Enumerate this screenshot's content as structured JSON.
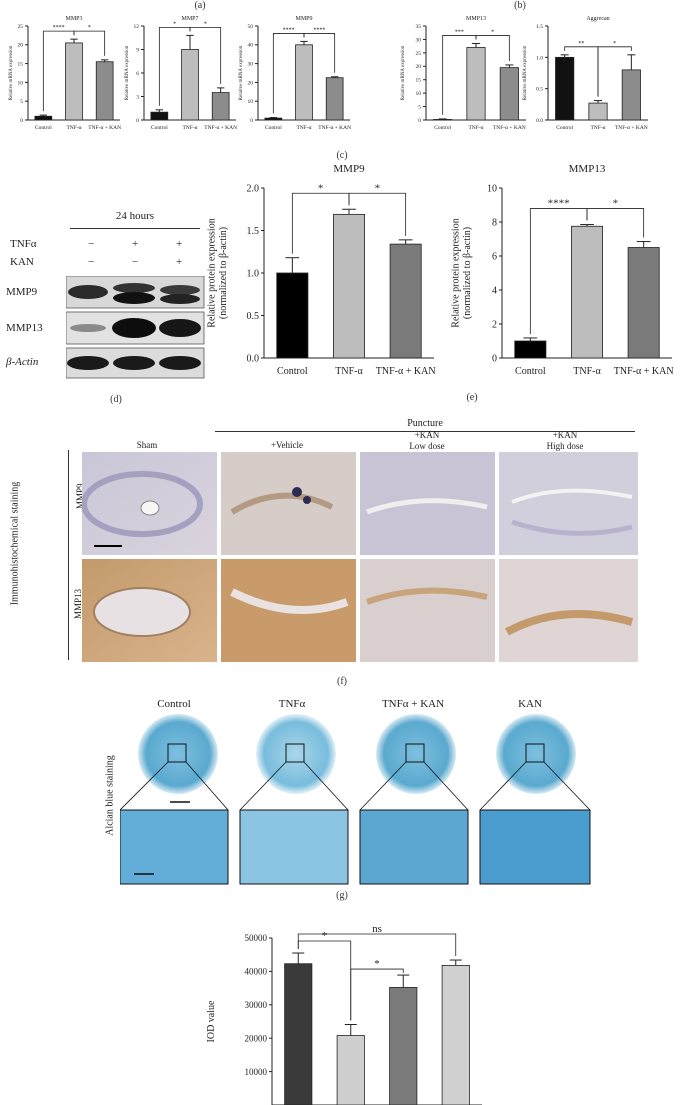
{
  "labels": {
    "a": "(a)",
    "b": "(b)",
    "c": "(c)",
    "d": "(d)",
    "e": "(e)",
    "f": "(f)",
    "g": "(g)"
  },
  "western": {
    "timepoint": "24 hours",
    "rows": [
      {
        "name": "TNFα",
        "signs": [
          "−",
          "+",
          "+"
        ]
      },
      {
        "name": "KAN",
        "signs": [
          "−",
          "−",
          "+"
        ]
      }
    ],
    "bands": [
      "MMP9",
      "MMP13",
      "β-Actin"
    ]
  },
  "ihc": {
    "puncture": "Puncture",
    "columns": [
      "Sham",
      "+Vehicle",
      "+KAN\nLow dose",
      "+KAN\nHigh dose"
    ],
    "side_label": "Immunohistochemical staining",
    "rows": [
      "MMP9",
      "MMP13"
    ]
  },
  "alcian": {
    "columns": [
      "Control",
      "TNFα",
      "TNFα + KAN",
      "KAN"
    ],
    "side_label": "Alcian blue staining",
    "colors": {
      "disc": "#5aa9cf",
      "tile": "#4f9fd0"
    }
  },
  "chart_data": [
    {
      "type": "bar",
      "title": "MMP3",
      "ylabel": "Relative mRNA expression",
      "categories": [
        "Control",
        "TNF-α",
        "TNF-α + KAN"
      ],
      "values": [
        1.0,
        20.5,
        15.5
      ],
      "errors": [
        0.3,
        1.0,
        0.5
      ],
      "ylim": [
        0,
        25
      ],
      "yticks": [
        "0",
        "5",
        "10",
        "15",
        "20",
        "25"
      ],
      "sig": [
        {
          "from": 0,
          "to": 1,
          "label": "****"
        },
        {
          "from": 1,
          "to": 2,
          "label": "*"
        }
      ],
      "colors": [
        "#111111",
        "#bdbdbd",
        "#8c8c8c"
      ]
    },
    {
      "type": "bar",
      "title": "MMP7",
      "ylabel": "Relative mRNA expression",
      "categories": [
        "Control",
        "TNF-α",
        "TNF-α + KAN"
      ],
      "values": [
        1.0,
        9.0,
        3.5
      ],
      "errors": [
        0.3,
        1.8,
        0.6
      ],
      "ylim": [
        0,
        12
      ],
      "yticks": [
        "0",
        "3",
        "6",
        "9",
        "12"
      ],
      "sig": [
        {
          "from": 0,
          "to": 1,
          "label": "*"
        },
        {
          "from": 1,
          "to": 2,
          "label": "*"
        }
      ],
      "colors": [
        "#111111",
        "#bdbdbd",
        "#8c8c8c"
      ]
    },
    {
      "type": "bar",
      "title": "MMP9",
      "ylabel": "Relative mRNA expression",
      "categories": [
        "Control",
        "TNF-α",
        "TNF-α + KAN"
      ],
      "values": [
        1.0,
        40.0,
        22.5
      ],
      "errors": [
        0.3,
        1.8,
        0.5
      ],
      "ylim": [
        0,
        50
      ],
      "yticks": [
        "0",
        "10",
        "20",
        "30",
        "40",
        "50"
      ],
      "sig": [
        {
          "from": 0,
          "to": 1,
          "label": "****"
        },
        {
          "from": 1,
          "to": 2,
          "label": "****"
        }
      ],
      "colors": [
        "#111111",
        "#bdbdbd",
        "#8c8c8c"
      ]
    },
    {
      "type": "bar",
      "title": "MMP13",
      "ylabel": "Relative mRNA expression",
      "categories": [
        "Control",
        "TNF-α",
        "TNF-α + KAN"
      ],
      "values": [
        0.2,
        27.0,
        19.5
      ],
      "errors": [
        0.2,
        1.5,
        1.0
      ],
      "ylim": [
        0,
        35
      ],
      "yticks": [
        "0",
        "5",
        "10",
        "15",
        "20",
        "25",
        "30",
        "35"
      ],
      "sig": [
        {
          "from": 0,
          "to": 1,
          "label": "***"
        },
        {
          "from": 1,
          "to": 2,
          "label": "*"
        }
      ],
      "colors": [
        "#111111",
        "#bdbdbd",
        "#8c8c8c"
      ]
    },
    {
      "type": "bar",
      "title": "Aggrecan",
      "ylabel": "Relative mRNA expression",
      "categories": [
        "Control",
        "TNF-α",
        "TNF-α + KAN"
      ],
      "values": [
        1.0,
        0.27,
        0.8
      ],
      "errors": [
        0.04,
        0.04,
        0.24
      ],
      "ylim": [
        0,
        1.5
      ],
      "yticks": [
        "0.0",
        "0.5",
        "1.0",
        "1.5"
      ],
      "sig": [
        {
          "from": 0,
          "to": 1,
          "label": "**"
        },
        {
          "from": 1,
          "to": 2,
          "label": "*"
        }
      ],
      "colors": [
        "#111111",
        "#bdbdbd",
        "#8c8c8c"
      ]
    },
    {
      "type": "bar",
      "title": "MMP9",
      "ylabel": "Relative protein expression\n(normalized to β-actin)",
      "categories": [
        "Control",
        "TNF-α",
        "TNF-α + KAN"
      ],
      "values": [
        1.0,
        1.69,
        1.34
      ],
      "errors": [
        0.18,
        0.06,
        0.05
      ],
      "ylim": [
        0,
        2.0
      ],
      "yticks": [
        "0.0",
        "0.5",
        "1.0",
        "1.5",
        "2.0"
      ],
      "sig": [
        {
          "from": 0,
          "to": 1,
          "label": "*"
        },
        {
          "from": 1,
          "to": 2,
          "label": "*"
        }
      ],
      "colors": [
        "#000000",
        "#bdbdbd",
        "#7a7a7a"
      ]
    },
    {
      "type": "bar",
      "title": "MMP13",
      "ylabel": "Relative protein expression\n(normalized to β-actin)",
      "categories": [
        "Control",
        "TNF-α",
        "TNF-α + KAN"
      ],
      "values": [
        1.0,
        7.75,
        6.5
      ],
      "errors": [
        0.18,
        0.1,
        0.35
      ],
      "ylim": [
        0,
        10
      ],
      "yticks": [
        "0",
        "2",
        "4",
        "6",
        "8",
        "10"
      ],
      "sig": [
        {
          "from": 0,
          "to": 1,
          "label": "****"
        },
        {
          "from": 1,
          "to": 2,
          "label": "*"
        }
      ],
      "colors": [
        "#000000",
        "#bdbdbd",
        "#7a7a7a"
      ]
    },
    {
      "type": "bar",
      "title": "",
      "ylabel": "IOD value",
      "categories": [
        "",
        "",
        "",
        ""
      ],
      "values": [
        42300,
        20800,
        35200,
        41800
      ],
      "errors": [
        3200,
        3300,
        3700,
        1600
      ],
      "ylim": [
        0,
        50000
      ],
      "yticks": [
        "10000",
        "20000",
        "30000",
        "40000",
        "50000"
      ],
      "sig": [
        {
          "from": 0,
          "to": 1,
          "label": "*"
        },
        {
          "from": 1,
          "to": 2,
          "label": "*"
        },
        {
          "from": 0,
          "to": 3,
          "label": "ns"
        }
      ],
      "colors": [
        "#3a3a3a",
        "#cfcfcf",
        "#7a7a7a",
        "#d0d0d0"
      ]
    }
  ]
}
